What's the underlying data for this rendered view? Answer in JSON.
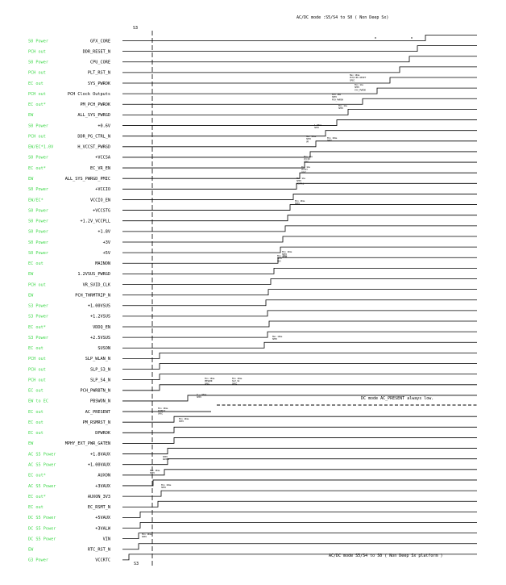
{
  "header": {
    "top_right": "AC/DC mode :S5/S4 to S0 ( Non Deep Sx)",
    "bottom_right": "AC/DC mode S5/S4 to S0 ( Non Deep Sx platform )",
    "s3_top": "S3",
    "s3_bottom": "S3"
  },
  "notes": {
    "ac_present": "DC mode AC_PRESENT always low."
  },
  "rows": [
    {
      "source": "S0 Power",
      "signal": "GFX_CORE",
      "rise": 528
    },
    {
      "source": "PCH out",
      "signal": "DDR_RESET_N",
      "rise": 518
    },
    {
      "source": "S0 Power",
      "signal": "CPU_CORE",
      "rise": 508
    },
    {
      "source": "PCH out",
      "signal": "PLT_RST_N",
      "rise": 496
    },
    {
      "source": "EC out",
      "signal": "SYS_PWROK",
      "rise": 484
    },
    {
      "source": "PCH out",
      "signal": "PCH Clock Outputs",
      "rise": 468
    },
    {
      "source": "EC out*",
      "signal": "PM_PCH_PWROK",
      "rise": 450
    },
    {
      "source": "EW",
      "signal": "ALL_SYS_PWRGD",
      "rise": 432
    },
    {
      "source": "S0 Power",
      "signal": "+0.6V",
      "rise": 418
    },
    {
      "source": "PCH out",
      "signal": "DDR_PG_CTRL_N",
      "rise": 404
    },
    {
      "source": "EW/EC*1.0V",
      "signal": "H_VCCST_PWRGD",
      "rise": 392
    },
    {
      "source": "S0 Power",
      "signal": "+VCCSA",
      "rise": 385
    },
    {
      "source": "EC out*",
      "signal": "EC_VR_EN",
      "rise": 378
    },
    {
      "source": "EW",
      "signal": "ALL_SYS_PWRGD_PMIC",
      "rise": 372
    },
    {
      "source": "S0 Power",
      "signal": "+VCCIO",
      "rise": 368
    },
    {
      "source": "EW/EC*",
      "signal": "VCCIO_EN",
      "rise": 364
    },
    {
      "source": "S0 Power",
      "signal": "+VCCSTG",
      "rise": 360
    },
    {
      "source": "S0 Power",
      "signal": "+1.2V_VCCPLL",
      "rise": 357
    },
    {
      "source": "S0 Power",
      "signal": "+1.8V",
      "rise": 354
    },
    {
      "source": "S0 Power",
      "signal": "+3V",
      "rise": 351
    },
    {
      "source": "S0 Power",
      "signal": "+5V",
      "rise": 348
    },
    {
      "source": "EC out",
      "signal": "MAINON",
      "rise": 345
    },
    {
      "source": "EW",
      "signal": "1.2VSUS_PWRGD",
      "rise": 340
    },
    {
      "source": "PCH out",
      "signal": "VR_SVID_CLK",
      "rise": 336
    },
    {
      "source": "EW",
      "signal": "PCH_THRMTRIP_N",
      "rise": 333
    },
    {
      "source": "S3 Power",
      "signal": "+1.00VSUS",
      "rise": 330
    },
    {
      "source": "S3 Power",
      "signal": "+1.2VSUS",
      "rise": 332
    },
    {
      "source": "EC out*",
      "signal": "VDDQ_EN",
      "rise": 334
    },
    {
      "source": "S3 Power",
      "signal": "+2.5VSUS",
      "rise": 332
    },
    {
      "source": "EC out",
      "signal": "SUSON",
      "rise": 328
    },
    {
      "source": "PCH out",
      "signal": "SLP_WLAN_N",
      "rise": 198
    },
    {
      "source": "PCH out",
      "signal": "SLP_S3_N",
      "rise": 198
    },
    {
      "source": "PCH out",
      "signal": "SLP_S4_N",
      "rise": 198
    },
    {
      "source": "EC out",
      "signal": "PCH_PWRBTN_N",
      "rise": 198
    },
    {
      "source": "EW to EC",
      "signal": "PBSWON_N",
      "rise": 233
    },
    {
      "source": "EC out",
      "signal": "AC_PRESENT",
      "rise": 0
    },
    {
      "source": "EC out",
      "signal": "PM_RSMRST_N",
      "rise": 216
    },
    {
      "source": "EC out",
      "signal": "DPWROK",
      "rise": 216
    },
    {
      "source": "EW",
      "signal": "MPHY_EXT_PWR_GATEN",
      "rise": 216
    },
    {
      "source": "AC S5 Power",
      "signal": "+1.8VAUX",
      "rise": 208
    },
    {
      "source": "AC S5 Power",
      "signal": "+1.00VAUX",
      "rise": 208
    },
    {
      "source": "EC out*",
      "signal": "AUXON",
      "rise": 204
    },
    {
      "source": "AC S5 Power",
      "signal": "+3VAUX",
      "rise": 190
    },
    {
      "source": "EC out*",
      "signal": "AUXON_3V3",
      "rise": 200
    },
    {
      "source": "EC out",
      "signal": "EC_RSMT_N",
      "rise": 196
    },
    {
      "source": "DC S5 Power",
      "signal": "+5VAUX",
      "rise": 174
    },
    {
      "source": "DC S5 Power",
      "signal": "+3VALW",
      "rise": 174
    },
    {
      "source": "DC S5 Power",
      "signal": "VIN",
      "rise": 172
    },
    {
      "source": "EW",
      "signal": "RTC_RST_N",
      "rise": 172
    },
    {
      "source": "G3 Power",
      "signal": "VCCRTC",
      "rise": 160
    }
  ],
  "annotations": [
    {
      "lines": [
        "Max 10ms",
        "PCH/CPU RESET",
        "SPEC"
      ]
    },
    {
      "lines": [
        "Min 1ms",
        "SPEC",
        "SYS_PWROK"
      ]
    },
    {
      "lines": [
        "Min 1ms",
        "SPEC",
        "PCH_PWROK"
      ]
    },
    {
      "lines": [
        "Min 1ms",
        "SPEC"
      ]
    },
    {
      "lines": [
        "1.00ms",
        "SPEC"
      ]
    },
    {
      "lines": [
        "Min 10ms",
        "SPEC"
      ]
    },
    {
      "lines": [
        "Max 10ms",
        "SPEC",
        "VR"
      ]
    },
    {
      "lines": [
        "Min 1ms",
        "VCCIO",
        "SPEC"
      ]
    },
    {
      "lines": [
        "Min 1ms",
        "VCCST",
        "SPEC"
      ]
    },
    {
      "lines": [
        "Min 1ms",
        "SPEC",
        "VCCPLL"
      ]
    },
    {
      "lines": [
        "Min 10ms",
        "SPEC"
      ]
    },
    {
      "lines": [
        "Min 10ms",
        "SPEC",
        "VDDQ"
      ]
    },
    {
      "lines": [
        "Min 10ms",
        "SPEC",
        "SUS"
      ]
    },
    {
      "lines": [
        "Max 10ms",
        "SPEC"
      ]
    },
    {
      "lines": [
        "Min 10ms",
        "PBSWON",
        "SPEC"
      ]
    },
    {
      "lines": [
        "Min 10ms",
        "SLP_S4",
        "SPEC"
      ]
    },
    {
      "lines": [
        "0 ~ 90ms",
        "SPEC"
      ]
    },
    {
      "lines": [
        "Min 10ms",
        "RSMRST",
        "SPEC"
      ]
    },
    {
      "lines": [
        "Min 10ms",
        "SPEC"
      ]
    },
    {
      "lines": [
        "SPEC",
        "AUXON"
      ]
    },
    {
      "lines": [
        "Max 10ms",
        "SPEC"
      ]
    },
    {
      "lines": [
        "Min 10ms",
        "SPEC"
      ]
    },
    {
      "lines": [
        "Min 10ms",
        "SPEC"
      ]
    }
  ]
}
